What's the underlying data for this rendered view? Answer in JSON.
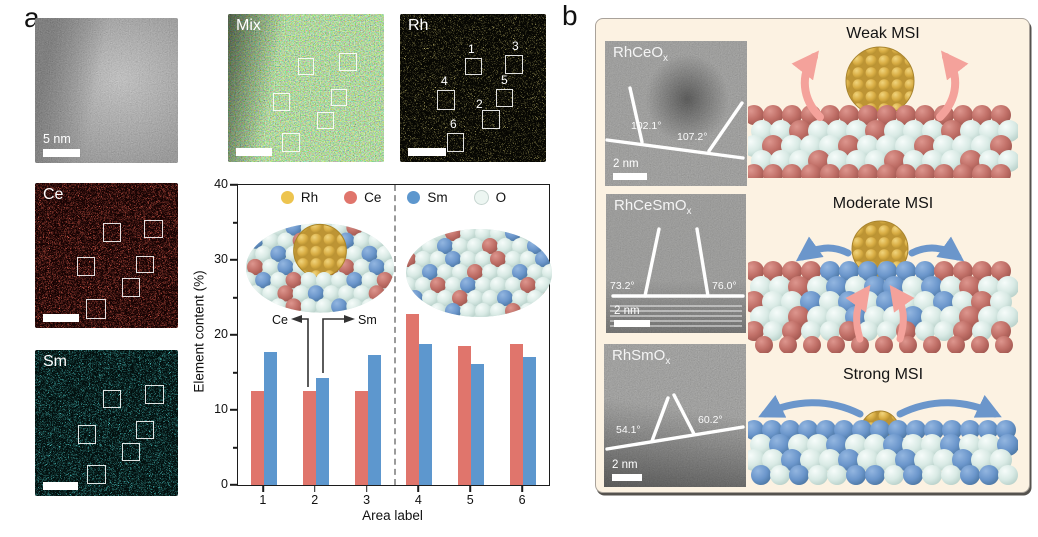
{
  "figure": {
    "panel_a_label": "a",
    "panel_b_label": "b"
  },
  "panel_a": {
    "haadf": {
      "scalebar_label": "5 nm"
    },
    "maps": {
      "mix": {
        "label": "Mix"
      },
      "rh": {
        "label": "Rh"
      },
      "ce": {
        "label": "Ce"
      },
      "sm": {
        "label": "Sm"
      }
    },
    "area_numbers": [
      "1",
      "2",
      "3",
      "4",
      "5",
      "6"
    ]
  },
  "chart_data": {
    "type": "bar",
    "title": "",
    "categories": [
      "1",
      "2",
      "3",
      "4",
      "5",
      "6"
    ],
    "series": [
      {
        "name": "Ce",
        "color": "#E0756C",
        "values": [
          12.5,
          12.5,
          12.5,
          22.8,
          18.6,
          18.8
        ]
      },
      {
        "name": "Sm",
        "color": "#5D97CE",
        "values": [
          17.7,
          14.3,
          17.3,
          18.8,
          16.2,
          17.1
        ]
      }
    ],
    "legend": [
      {
        "label": "Rh",
        "color": "#EDC44F"
      },
      {
        "label": "Ce",
        "color": "#E0756C"
      },
      {
        "label": "Sm",
        "color": "#5D97CE"
      },
      {
        "label": "O",
        "color": "#EDF6F2"
      }
    ],
    "legend_position": "top-center-inside",
    "xlabel": "Area label",
    "ylabel": "Element content (%)",
    "ylim": [
      0,
      40
    ],
    "yticks": [
      0,
      10,
      20,
      30,
      40
    ],
    "yticks_minor": [
      5,
      15,
      25,
      35
    ],
    "grid": false,
    "divider_after_category": 3,
    "annotation": {
      "left_label": "Ce",
      "right_label": "Sm"
    }
  },
  "panel_b": {
    "insets": [
      {
        "formula": "RhCeO",
        "subscript": "x",
        "angle_left": "102.1°",
        "angle_right": "107.2°",
        "scalebar_label": "2 nm"
      },
      {
        "formula": "RhCeSmO",
        "subscript": "x",
        "angle_left": "73.2°",
        "angle_right": "76.0°",
        "scalebar_label": "2 nm"
      },
      {
        "formula": "RhSmO",
        "subscript": "x",
        "angle_left": "54.1°",
        "angle_right": "60.2°",
        "scalebar_label": "2 nm"
      }
    ],
    "schematics": [
      {
        "title": "Weak MSI"
      },
      {
        "title": "Moderate MSI"
      },
      {
        "title": "Strong MSI"
      }
    ]
  }
}
